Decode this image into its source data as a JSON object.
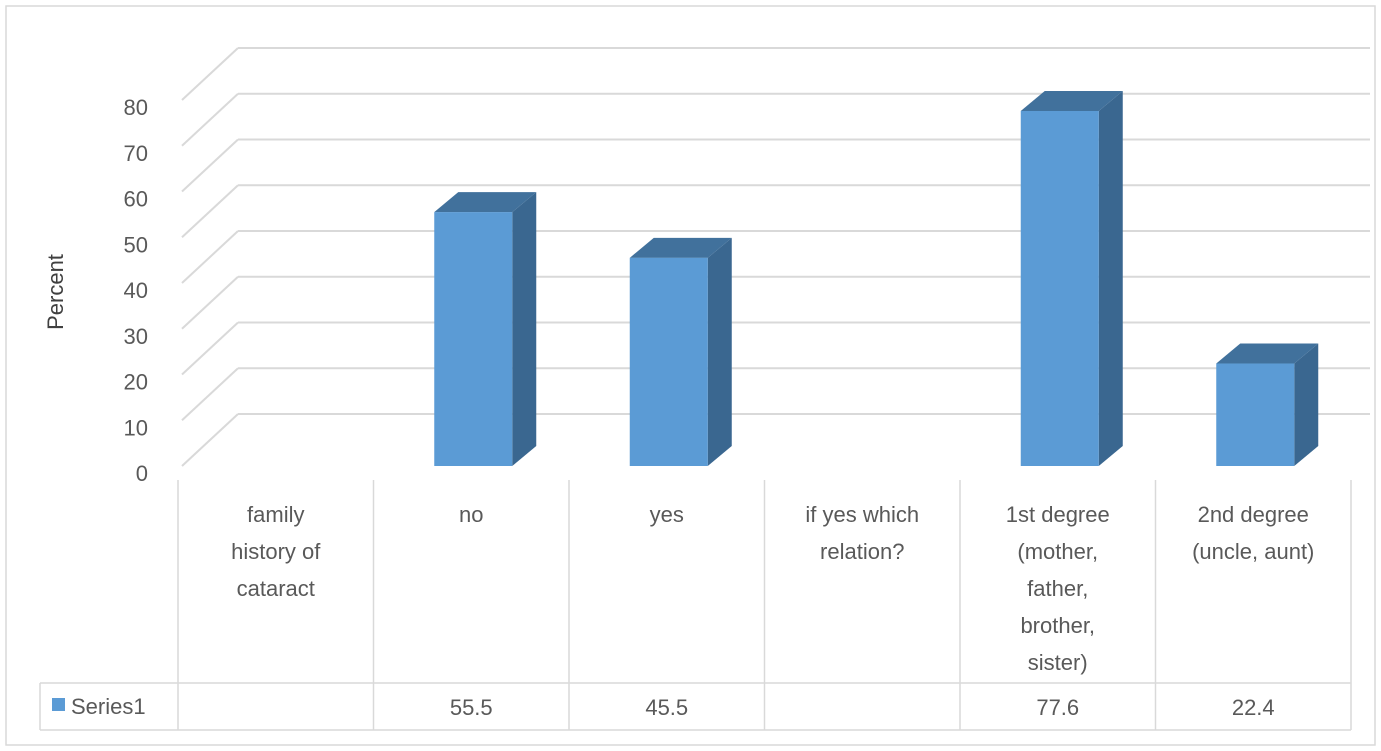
{
  "chart_data": {
    "type": "bar",
    "style": "3d-column-with-data-table",
    "title": "",
    "xlabel": "",
    "ylabel": "Percent",
    "ylim": [
      0,
      80
    ],
    "yticks": [
      0,
      10,
      20,
      30,
      40,
      50,
      60,
      70,
      80
    ],
    "grid": true,
    "categories": [
      "family history of cataract",
      "no",
      "yes",
      "if yes which relation?",
      "1st degree (mother, father, brother, sister)",
      "2nd degree (uncle, aunt)"
    ],
    "category_lines": [
      [
        "family",
        "history of",
        "cataract"
      ],
      [
        "no"
      ],
      [
        "yes"
      ],
      [
        "if yes which",
        "relation?"
      ],
      [
        "1st degree",
        "(mother,",
        "father,",
        "brother,",
        "sister)"
      ],
      [
        "2nd degree",
        "(uncle, aunt)"
      ]
    ],
    "series": [
      {
        "name": "Series1",
        "values": [
          null,
          55.5,
          45.5,
          null,
          77.6,
          22.4
        ],
        "table_values": [
          "",
          "55.5",
          "45.5",
          "",
          "77.6",
          "22.4"
        ],
        "color": "#5B9BD5",
        "side_color": "#3A6790",
        "top_color": "#41719C"
      }
    ],
    "legend": "data-table"
  }
}
